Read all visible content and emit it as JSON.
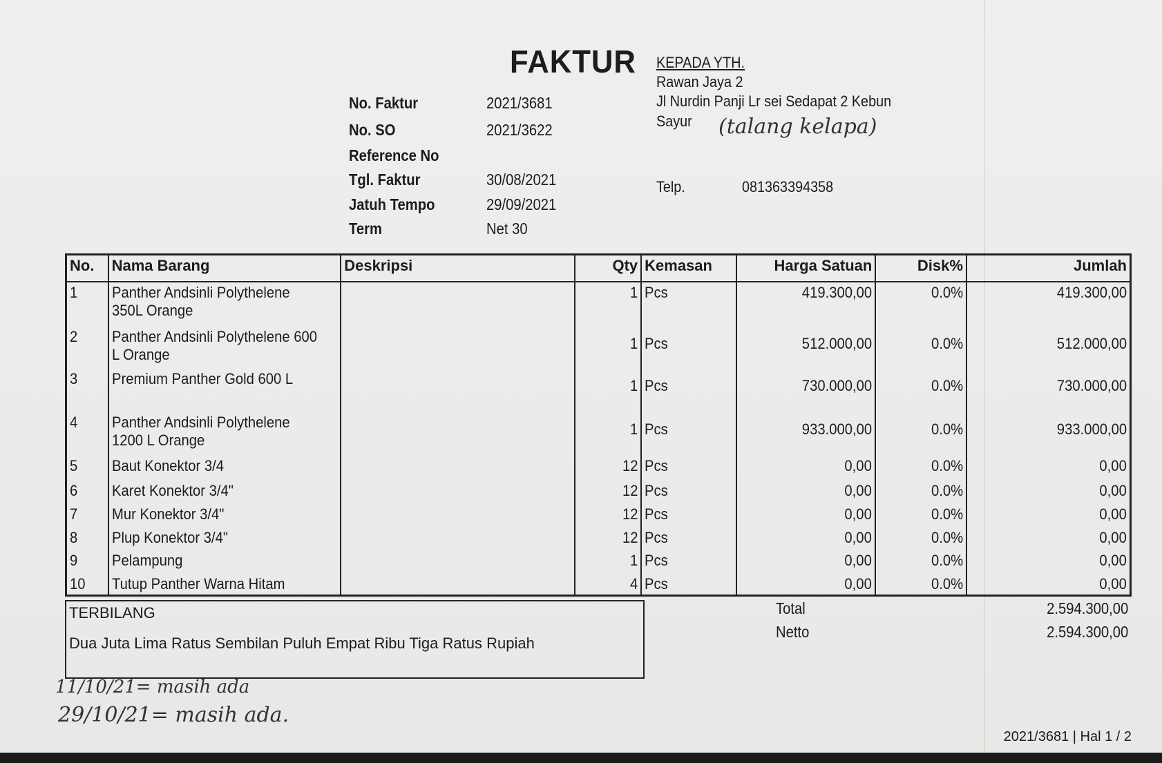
{
  "title": "FAKTUR",
  "fields": [
    {
      "label": "No. Faktur",
      "value": "2021/3681"
    },
    {
      "label": "No. SO",
      "value": "2021/3622"
    },
    {
      "label": "Reference No",
      "value": ""
    },
    {
      "label": "Tgl. Faktur",
      "value": "30/08/2021"
    },
    {
      "label": "Jatuh Tempo",
      "value": "29/09/2021"
    },
    {
      "label": "Term",
      "value": "Net 30"
    }
  ],
  "recipient": {
    "heading": "KEPADA YTH.",
    "name": "Rawan Jaya 2",
    "address_1": "Jl Nurdin Panji Lr sei Sedapat 2 Kebun",
    "address_2": "Sayur",
    "handwritten_note": "(talang kelapa)",
    "phone_label": "Telp.",
    "phone": "081363394358"
  },
  "table": {
    "columns": [
      "No.",
      "Nama Barang",
      "Deskripsi",
      "Qty",
      "Kemasan",
      "Harga Satuan",
      "Disk%",
      "Jumlah"
    ],
    "rows": [
      {
        "no": "1",
        "name": "Panther Andsinli Polythelene 350L Orange",
        "desc": "",
        "qty": "1",
        "unit": "Pcs",
        "price": "419.300,00",
        "disc": "0.0%",
        "total": "419.300,00"
      },
      {
        "no": "2",
        "name": "Panther Andsinli Polythelene 600 L Orange",
        "desc": "",
        "qty": "1",
        "unit": "Pcs",
        "price": "512.000,00",
        "disc": "0.0%",
        "total": "512.000,00"
      },
      {
        "no": "3",
        "name": "Premium Panther Gold  600 L",
        "desc": "",
        "qty": "1",
        "unit": "Pcs",
        "price": "730.000,00",
        "disc": "0.0%",
        "total": "730.000,00"
      },
      {
        "no": "4",
        "name": "Panther Andsinli Polythelene 1200 L Orange",
        "desc": "",
        "qty": "1",
        "unit": "Pcs",
        "price": "933.000,00",
        "disc": "0.0%",
        "total": "933.000,00"
      },
      {
        "no": "5",
        "name": "Baut Konektor 3/4",
        "desc": "",
        "qty": "12",
        "unit": "Pcs",
        "price": "0,00",
        "disc": "0.0%",
        "total": "0,00"
      },
      {
        "no": "6",
        "name": "Karet Konektor 3/4\"",
        "desc": "",
        "qty": "12",
        "unit": "Pcs",
        "price": "0,00",
        "disc": "0.0%",
        "total": "0,00"
      },
      {
        "no": "7",
        "name": "Mur Konektor 3/4\"",
        "desc": "",
        "qty": "12",
        "unit": "Pcs",
        "price": "0,00",
        "disc": "0.0%",
        "total": "0,00"
      },
      {
        "no": "8",
        "name": "Plup Konektor 3/4\"",
        "desc": "",
        "qty": "12",
        "unit": "Pcs",
        "price": "0,00",
        "disc": "0.0%",
        "total": "0,00"
      },
      {
        "no": "9",
        "name": "Pelampung",
        "desc": "",
        "qty": "1",
        "unit": "Pcs",
        "price": "0,00",
        "disc": "0.0%",
        "total": "0,00"
      },
      {
        "no": "10",
        "name": "Tutup Panther Warna Hitam",
        "desc": "",
        "qty": "4",
        "unit": "Pcs",
        "price": "0,00",
        "disc": "0.0%",
        "total": "0,00"
      }
    ]
  },
  "terbilang": {
    "label": "TERBILANG",
    "text": "Dua Juta Lima Ratus Sembilan Puluh Empat Ribu Tiga Ratus Rupiah"
  },
  "summary": {
    "total_label": "Total",
    "total": "2.594.300,00",
    "netto_label": "Netto",
    "netto": "2.594.300,00"
  },
  "handwritten_notes": [
    "11/10/21= masih ada",
    "29/10/21= masih ada."
  ],
  "footer": "2021/3681 | Hal 1 / 2"
}
